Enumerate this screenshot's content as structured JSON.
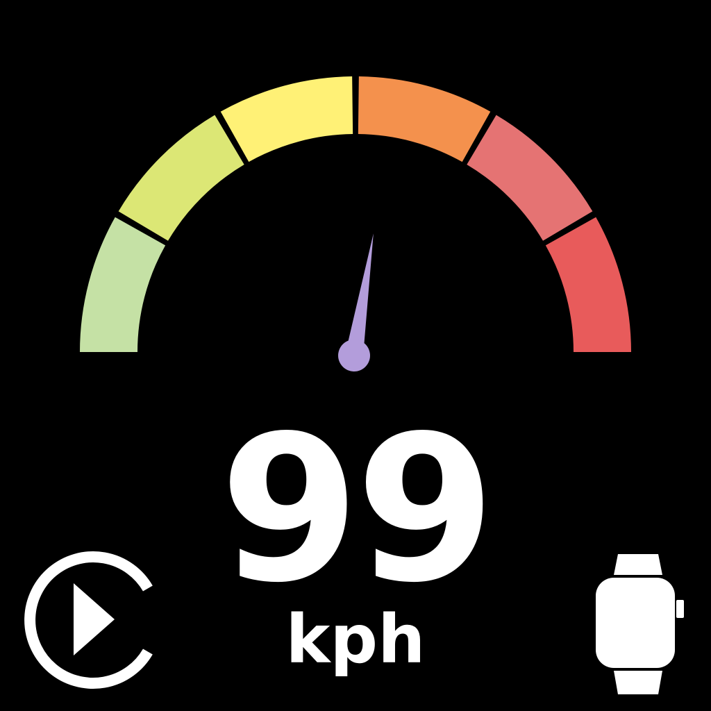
{
  "speedometer": {
    "speed": 99,
    "speed_text": "99",
    "unit": "kph",
    "gauge_min": 0,
    "gauge_max": 180,
    "segment_colors": [
      "#c5e1a5",
      "#dce775",
      "#fff176",
      "#f4914d",
      "#e57373",
      "#e85b5b"
    ],
    "needle_color": "#b39ddb"
  },
  "controls": {
    "replay_icon": "replay-play-icon",
    "watch_icon": "smartwatch-icon",
    "icon_color": "#ffffff"
  }
}
